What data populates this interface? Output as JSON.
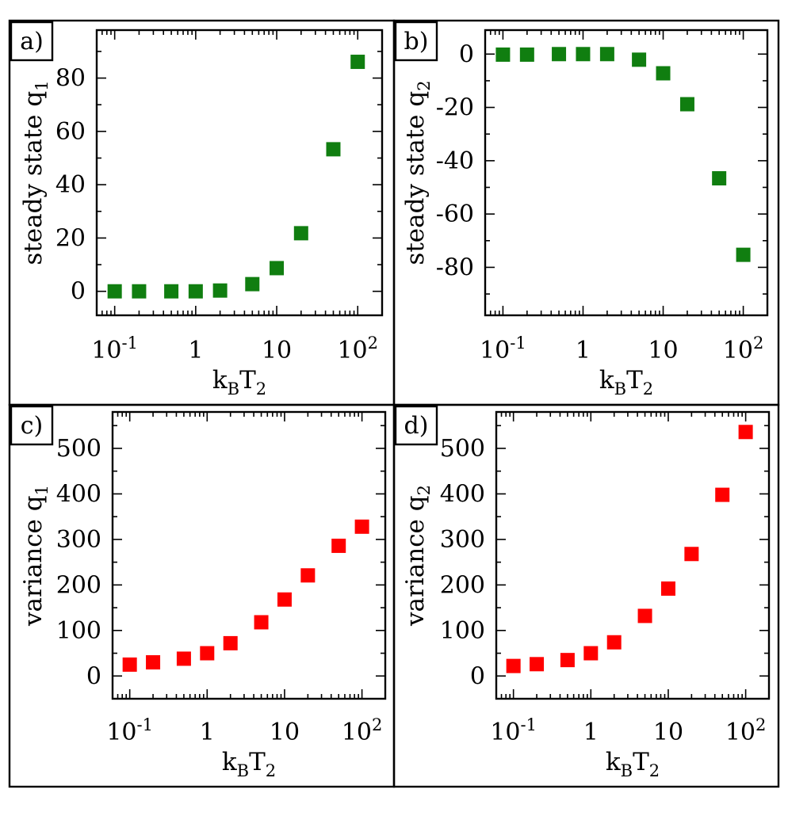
{
  "chart_data": [
    {
      "type": "scatter",
      "panel_label": "a)",
      "ylabel_main": "steady state q",
      "ylabel_sub": "1",
      "xlabel_main": "k",
      "xlabel_sub1": "B",
      "xlabel_T": "T",
      "xlabel_sub2": "2",
      "xscale": "log",
      "xlim": [
        0.06,
        200
      ],
      "ylim": [
        -9,
        98
      ],
      "yticks": [
        0,
        20,
        40,
        60,
        80
      ],
      "ytick_labels": [
        "0",
        "20",
        "40",
        "60",
        "80"
      ],
      "color": "#107e10",
      "series": [
        {
          "name": "steady state q1",
          "x": [
            0.1,
            0.2,
            0.5,
            1,
            2,
            5,
            10,
            20,
            50,
            100
          ],
          "y": [
            0,
            0,
            0,
            0,
            0.3,
            2.7,
            8.7,
            21.8,
            53.3,
            86.1
          ]
        }
      ]
    },
    {
      "type": "scatter",
      "panel_label": "b)",
      "ylabel_main": "steady state q",
      "ylabel_sub": "2",
      "xlabel_main": "k",
      "xlabel_sub1": "B",
      "xlabel_T": "T",
      "xlabel_sub2": "2",
      "xscale": "log",
      "xlim": [
        0.06,
        200
      ],
      "ylim": [
        -98,
        9
      ],
      "yticks": [
        0,
        -20,
        -40,
        -60,
        -80
      ],
      "ytick_labels": [
        "0",
        "-20",
        "-40",
        "-60",
        "-80"
      ],
      "color": "#107e10",
      "series": [
        {
          "name": "steady state q2",
          "x": [
            0.1,
            0.2,
            0.5,
            1,
            2,
            5,
            10,
            20,
            50,
            100
          ],
          "y": [
            -0.2,
            -0.2,
            0,
            0,
            0,
            -2.1,
            -7.2,
            -18.8,
            -46.6,
            -75.3
          ]
        }
      ]
    },
    {
      "type": "scatter",
      "panel_label": "c)",
      "ylabel_main": "variance q",
      "ylabel_sub": "1",
      "xlabel_main": "k",
      "xlabel_sub1": "B",
      "xlabel_T": "T",
      "xlabel_sub2": "2",
      "xscale": "log",
      "xlim": [
        0.06,
        200
      ],
      "ylim": [
        -50,
        580
      ],
      "yticks": [
        0,
        100,
        200,
        300,
        400,
        500
      ],
      "ytick_labels": [
        "0",
        "100",
        "200",
        "300",
        "400",
        "500"
      ],
      "color": "#ff0000",
      "series": [
        {
          "name": "variance q1",
          "x": [
            0.1,
            0.2,
            0.5,
            1,
            2,
            5,
            10,
            20,
            50,
            100
          ],
          "y": [
            25,
            30,
            38,
            50,
            72,
            118,
            168,
            221,
            286,
            328
          ]
        }
      ]
    },
    {
      "type": "scatter",
      "panel_label": "d)",
      "ylabel_main": "variance q",
      "ylabel_sub": "2",
      "xlabel_main": "k",
      "xlabel_sub1": "B",
      "xlabel_T": "T",
      "xlabel_sub2": "2",
      "xscale": "log",
      "xlim": [
        0.06,
        200
      ],
      "ylim": [
        -50,
        580
      ],
      "yticks": [
        0,
        100,
        200,
        300,
        400,
        500
      ],
      "ytick_labels": [
        "0",
        "100",
        "200",
        "300",
        "400",
        "500"
      ],
      "color": "#ff0000",
      "series": [
        {
          "name": "variance q2",
          "x": [
            0.1,
            0.2,
            0.5,
            1,
            2,
            5,
            10,
            20,
            50,
            100
          ],
          "y": [
            22,
            26,
            35,
            50,
            74,
            132,
            192,
            268,
            398,
            536
          ]
        }
      ]
    }
  ],
  "xtick_labels": [
    {
      "value": 0.1,
      "base": "10",
      "exp": "-1"
    },
    {
      "value": 1,
      "base": "1",
      "exp": ""
    },
    {
      "value": 10,
      "base": "10",
      "exp": ""
    },
    {
      "value": 100,
      "base": "10",
      "exp": "2"
    }
  ]
}
